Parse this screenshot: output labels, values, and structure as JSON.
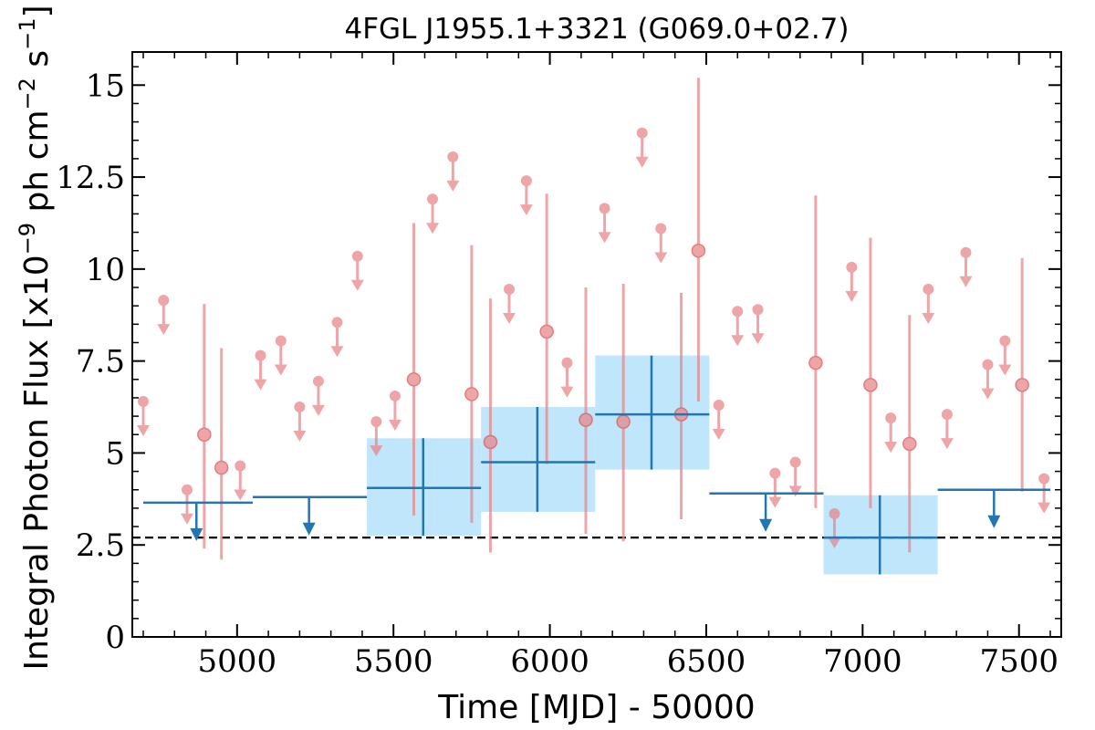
{
  "chart_data": {
    "type": "scatter",
    "title": "4FGL J1955.1+3321 (G069.0+02.7)",
    "xlabel": "Time [MJD] - 50000",
    "ylabel_text": "Integral Photon Flux [x10",
    "ylabel_exp1": "−9",
    "ylabel_mid": " ph cm",
    "ylabel_exp2": "−2",
    "ylabel_mid2": " s",
    "ylabel_exp3": "−1",
    "ylabel_end": "]",
    "xlim": [
      4665,
      7635
    ],
    "ylim": [
      0,
      15.9
    ],
    "xticks": [
      5000,
      5500,
      6000,
      6500,
      7000,
      7500
    ],
    "xtick_labels": [
      "5000",
      "5500",
      "6000",
      "6500",
      "7000",
      "7500"
    ],
    "yticks": [
      0,
      2.5,
      5,
      7.5,
      10,
      12.5,
      15
    ],
    "ytick_labels": [
      "0",
      "2.5",
      "5",
      "7.5",
      "10",
      "12.5",
      "15"
    ],
    "reference_level": 2.7,
    "colors": {
      "short_bins": "#e8888c",
      "long_bins_line": "#1f77b4",
      "long_bins_band": "#bfe6fb",
      "reference_line": "#000000"
    },
    "short_bins_upper_limits": [
      {
        "x": 4700,
        "y": 6.4
      },
      {
        "x": 4765,
        "y": 9.15
      },
      {
        "x": 4840,
        "y": 4.0
      },
      {
        "x": 5010,
        "y": 4.65
      },
      {
        "x": 5075,
        "y": 7.65
      },
      {
        "x": 5140,
        "y": 8.05
      },
      {
        "x": 5200,
        "y": 6.25
      },
      {
        "x": 5260,
        "y": 6.95
      },
      {
        "x": 5320,
        "y": 8.55
      },
      {
        "x": 5385,
        "y": 10.35
      },
      {
        "x": 5445,
        "y": 5.85
      },
      {
        "x": 5505,
        "y": 6.55
      },
      {
        "x": 5625,
        "y": 11.9
      },
      {
        "x": 5690,
        "y": 13.05
      },
      {
        "x": 5870,
        "y": 9.45
      },
      {
        "x": 5925,
        "y": 12.4
      },
      {
        "x": 6055,
        "y": 7.45
      },
      {
        "x": 6175,
        "y": 11.65
      },
      {
        "x": 6295,
        "y": 13.7
      },
      {
        "x": 6355,
        "y": 11.1
      },
      {
        "x": 6540,
        "y": 6.3
      },
      {
        "x": 6600,
        "y": 8.85
      },
      {
        "x": 6665,
        "y": 8.9
      },
      {
        "x": 6720,
        "y": 4.45
      },
      {
        "x": 6785,
        "y": 4.75
      },
      {
        "x": 6910,
        "y": 3.35
      },
      {
        "x": 6965,
        "y": 10.05
      },
      {
        "x": 7090,
        "y": 5.95
      },
      {
        "x": 7210,
        "y": 9.45
      },
      {
        "x": 7270,
        "y": 6.05
      },
      {
        "x": 7330,
        "y": 10.45
      },
      {
        "x": 7400,
        "y": 7.4
      },
      {
        "x": 7455,
        "y": 8.05
      },
      {
        "x": 7580,
        "y": 4.3
      }
    ],
    "short_bins_detections": [
      {
        "x": 4895,
        "y": 5.5,
        "ylow": 2.4,
        "yhigh": 9.05
      },
      {
        "x": 4950,
        "y": 4.6,
        "ylow": 2.1,
        "yhigh": 7.85
      },
      {
        "x": 5565,
        "y": 7.0,
        "ylow": 3.3,
        "yhigh": 11.25
      },
      {
        "x": 5750,
        "y": 6.6,
        "ylow": 3.1,
        "yhigh": 10.65
      },
      {
        "x": 5810,
        "y": 5.3,
        "ylow": 2.3,
        "yhigh": 9.2
      },
      {
        "x": 5990,
        "y": 8.3,
        "ylow": 4.7,
        "yhigh": 12.05
      },
      {
        "x": 6115,
        "y": 5.9,
        "ylow": 2.8,
        "yhigh": 9.5
      },
      {
        "x": 6235,
        "y": 5.85,
        "ylow": 2.6,
        "yhigh": 9.6
      },
      {
        "x": 6420,
        "y": 6.05,
        "ylow": 3.2,
        "yhigh": 9.35
      },
      {
        "x": 6475,
        "y": 10.5,
        "ylow": 6.4,
        "yhigh": 15.2
      },
      {
        "x": 6850,
        "y": 7.45,
        "ylow": 3.5,
        "yhigh": 12.0
      },
      {
        "x": 7025,
        "y": 6.85,
        "ylow": 3.5,
        "yhigh": 10.85
      },
      {
        "x": 7150,
        "y": 5.25,
        "ylow": 2.3,
        "yhigh": 8.75
      },
      {
        "x": 7510,
        "y": 6.85,
        "ylow": 3.95,
        "yhigh": 10.3
      }
    ],
    "long_bins_upper_limits": [
      {
        "x0": 4700,
        "x1": 5050,
        "y": 3.65,
        "arrow_x": 4870
      },
      {
        "x0": 5050,
        "x1": 5415,
        "y": 3.8,
        "arrow_x": 5230
      },
      {
        "x0": 6510,
        "x1": 6875,
        "y": 3.9,
        "arrow_x": 6690
      },
      {
        "x0": 7240,
        "x1": 7600,
        "y": 4.0,
        "arrow_x": 7420
      }
    ],
    "long_bins_detections": [
      {
        "x": 5595,
        "x0": 5415,
        "x1": 5780,
        "y": 4.05,
        "ylow": 2.75,
        "yhigh": 5.4
      },
      {
        "x": 5960,
        "x1": 6145,
        "x0": 5780,
        "y": 4.75,
        "ylow": 3.4,
        "yhigh": 6.25
      },
      {
        "x": 6325,
        "x0": 6145,
        "x1": 6510,
        "y": 6.05,
        "ylow": 4.55,
        "yhigh": 7.65
      },
      {
        "x": 7055,
        "x0": 6875,
        "x1": 7240,
        "y": 2.7,
        "ylow": 1.7,
        "yhigh": 3.85
      }
    ]
  }
}
